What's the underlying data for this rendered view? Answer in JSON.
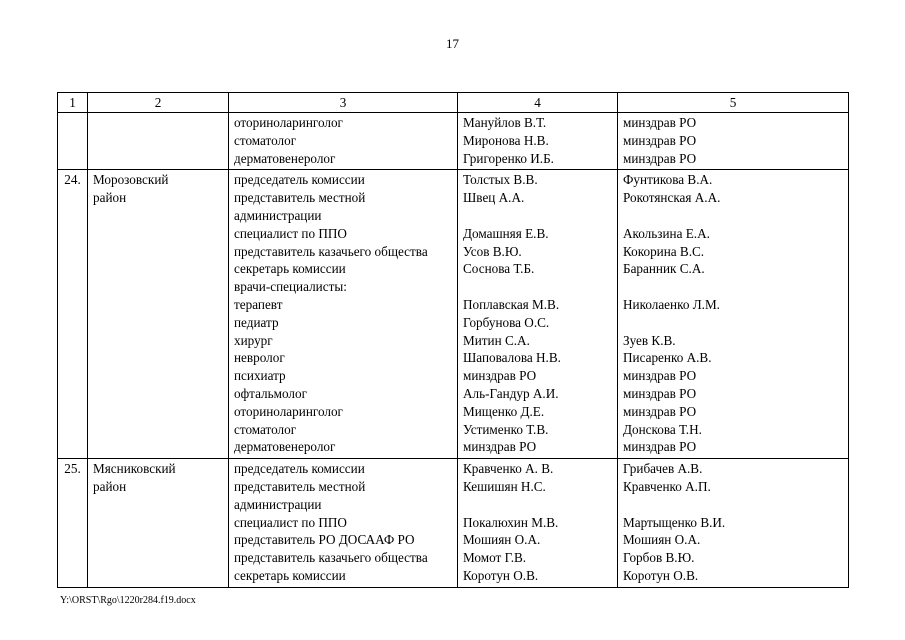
{
  "page": {
    "number": "17",
    "footer_path": "Y:\\ORST\\Rgo\\1220r284.f19.docx"
  },
  "table": {
    "headers": [
      "1",
      "2",
      "3",
      "4",
      "5"
    ],
    "rows": [
      {
        "num": "",
        "district": "",
        "lines": [
          [
            "оториноларинголог",
            "Мануйлов В.Т.",
            "минздрав РО"
          ],
          [
            "стоматолог",
            "Миронова Н.В.",
            "минздрав РО"
          ],
          [
            "дерматовенеролог",
            "Григоренко И.Б.",
            "минздрав РО"
          ]
        ]
      },
      {
        "num": "24.",
        "district": "Морозовский\nрайон",
        "lines": [
          [
            "председатель комиссии",
            "Толстых В.В.",
            "Фунтикова В.А."
          ],
          [
            "представитель местной",
            "Швец А.А.",
            "Рокотянская А.А."
          ],
          [
            "администрации",
            "",
            ""
          ],
          [
            "специалист по ППО",
            "Домашняя Е.В.",
            "Акользина Е.А."
          ],
          [
            "представитель казачьего общества",
            "Усов В.Ю.",
            "Кокорина В.С."
          ],
          [
            "секретарь комиссии",
            "Соснова Т.Б.",
            "Баранник С.А."
          ],
          [
            "врачи-специалисты:",
            "",
            ""
          ],
          [
            "терапевт",
            "Поплавская М.В.",
            "Николаенко Л.М."
          ],
          [
            "педиатр",
            "Горбунова О.С.",
            ""
          ],
          [
            "хирург",
            "Митин С.А.",
            "Зуев К.В."
          ],
          [
            "невролог",
            "Шаповалова Н.В.",
            "Писаренко А.В."
          ],
          [
            "психиатр",
            "минздрав РО",
            "минздрав РО"
          ],
          [
            "офтальмолог",
            "Аль-Гандур А.И.",
            "минздрав РО"
          ],
          [
            "оториноларинголог",
            "Мищенко Д.Е.",
            "минздрав РО"
          ],
          [
            "стоматолог",
            "Устименко Т.В.",
            "Донскова Т.Н."
          ],
          [
            "дерматовенеролог",
            "минздрав РО",
            "минздрав РО"
          ]
        ]
      },
      {
        "num": "25.",
        "district": "Мясниковский\nрайон",
        "lines": [
          [
            "председатель комиссии",
            "Кравченко А. В.",
            "Грибачев А.В."
          ],
          [
            "представитель местной",
            "Кешишян Н.С.",
            "Кравченко А.П."
          ],
          [
            "администрации",
            "",
            ""
          ],
          [
            "специалист по ППО",
            "Покалюхин М.В.",
            "Мартыщенко В.И."
          ],
          [
            "представитель РО ДОСААФ РО",
            "Мошиян О.А.",
            "Мошиян О.А."
          ],
          [
            "представитель казачьего общества",
            "Момот Г.В.",
            "Горбов В.Ю."
          ],
          [
            "секретарь комиссии",
            "Коротун О.В.",
            "Коротун О.В."
          ]
        ]
      }
    ]
  }
}
